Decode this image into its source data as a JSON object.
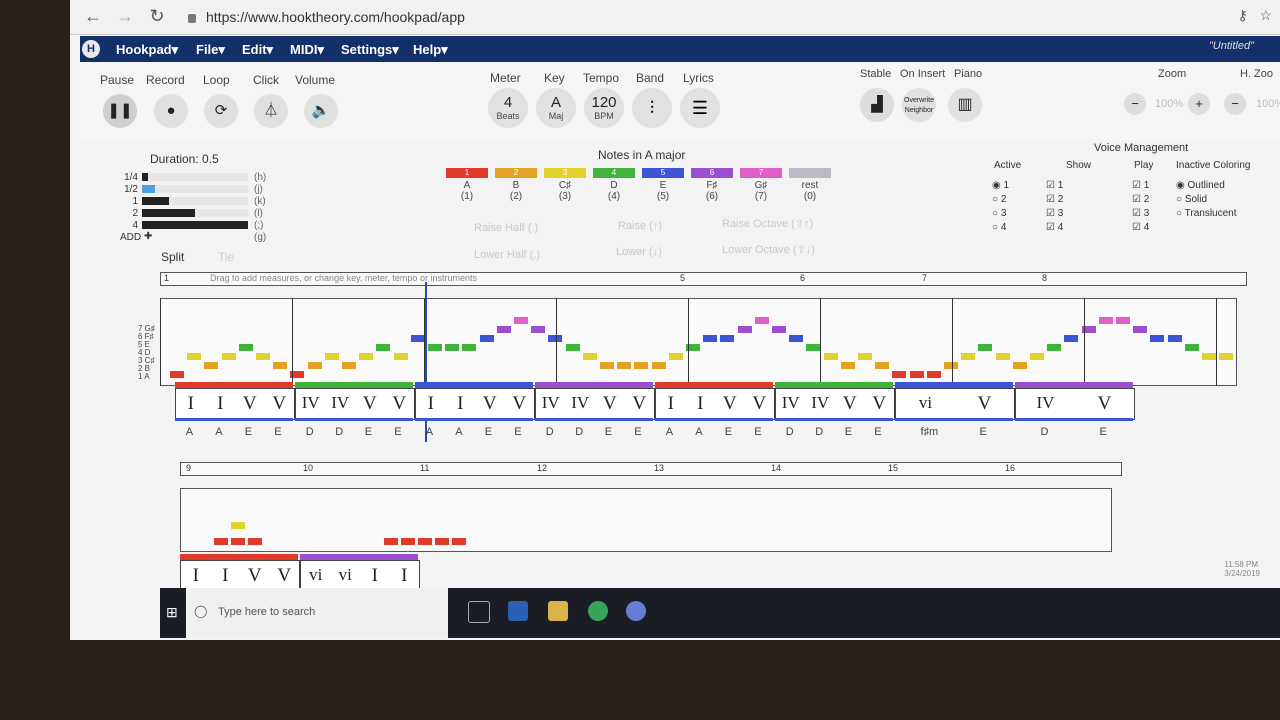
{
  "browser": {
    "url": "https://www.hooktheory.com/hookpad/app",
    "back_icon": "arrow-left-icon",
    "forward_icon": "arrow-right-icon",
    "reload_icon": "reload-icon"
  },
  "menubar": {
    "logo": "H",
    "items": [
      "Hookpad▾",
      "File▾",
      "Edit▾",
      "MIDI▾",
      "Settings▾",
      "Help▾"
    ],
    "doc_title": "\"Untitled\""
  },
  "toolbar": {
    "transport_labels": [
      "Pause",
      "Record",
      "Loop",
      "Click",
      "Volume"
    ],
    "song_labels": [
      "Meter",
      "Key",
      "Tempo",
      "Band",
      "Lyrics"
    ],
    "meter": {
      "big": "4",
      "small": "Beats"
    },
    "key": {
      "big": "A",
      "small": "Maj"
    },
    "tempo": {
      "big": "120",
      "small": "BPM"
    },
    "mode_labels": [
      "Stable",
      "On Insert",
      "Piano"
    ],
    "on_insert_value": "Overwrite Neighbor",
    "zoom_label": "Zoom",
    "zoom_value": "100%",
    "zoom_label2": "H. Zoo",
    "zoom_value2": "100%"
  },
  "duration": {
    "title": "Duration: 0.5",
    "rows": [
      {
        "label": "1/4",
        "key": "(h)",
        "fraction": 0.06
      },
      {
        "label": "1/2",
        "key": "(j)",
        "fraction": 0.12
      },
      {
        "label": "1",
        "key": "(k)",
        "fraction": 0.25
      },
      {
        "label": "2",
        "key": "(l)",
        "fraction": 0.5
      },
      {
        "label": "4",
        "key": "(;)",
        "fraction": 1.0
      },
      {
        "label": "ADD",
        "key": "(g)",
        "fraction": 0
      }
    ],
    "add_symbol": "✚",
    "split": "Split",
    "tie": "Tie"
  },
  "notes": {
    "title": "Notes in A major",
    "items": [
      {
        "num": "1",
        "name": "A",
        "key": "(1)",
        "color": "#e03a2a"
      },
      {
        "num": "2",
        "name": "B",
        "key": "(2)",
        "color": "#e3a224"
      },
      {
        "num": "3",
        "name": "C♯",
        "key": "(3)",
        "color": "#e2d22e"
      },
      {
        "num": "4",
        "name": "D",
        "key": "(4)",
        "color": "#3fb33a"
      },
      {
        "num": "5",
        "name": "E",
        "key": "(5)",
        "color": "#3c55d6"
      },
      {
        "num": "6",
        "name": "F♯",
        "key": "(6)",
        "color": "#9b4fd0"
      },
      {
        "num": "7",
        "name": "G♯",
        "key": "(7)",
        "color": "#e060c8"
      },
      {
        "num": "",
        "name": "rest",
        "key": "(0)",
        "color": "#b9bcc6"
      }
    ],
    "buttons": [
      "Raise Half (.)",
      "Raise (↑)",
      "Raise Octave (⇧↑)",
      "Lower Half (,)",
      "Lower (↓)",
      "Lower Octave (⇧↓)"
    ]
  },
  "voice": {
    "title": "Voice Management",
    "headers": [
      "Active",
      "Show",
      "Play",
      "Inactive Coloring"
    ],
    "numbers": [
      "1",
      "2",
      "3",
      "4"
    ],
    "coloring": [
      "Outlined",
      "Solid",
      "Translucent"
    ]
  },
  "score": {
    "hint": "Drag to add measures, or change key, meter, tempo or instruments",
    "measure_numbers": [
      "1",
      "5",
      "6",
      "7",
      "8"
    ],
    "pitch_labels": [
      "7 G♯",
      "6 F♯",
      "5 E",
      "4 D",
      "3 C♯",
      "2 B",
      "1 A"
    ],
    "chords": [
      [
        "I",
        "I",
        "V",
        "V"
      ],
      [
        "IV",
        "IV",
        "V",
        "V"
      ],
      [
        "I",
        "I",
        "V",
        "V"
      ],
      [
        "IV",
        "IV",
        "V",
        "V"
      ],
      [
        "I",
        "I",
        "V",
        "V"
      ],
      [
        "IV",
        "IV",
        "V",
        "V"
      ],
      [
        "vi",
        "V"
      ],
      [
        "IV",
        "V"
      ]
    ],
    "bass": [
      [
        "A",
        "A",
        "E",
        "E"
      ],
      [
        "D",
        "D",
        "E",
        "E"
      ],
      [
        "A",
        "A",
        "E",
        "E"
      ],
      [
        "D",
        "D",
        "E",
        "E"
      ],
      [
        "A",
        "A",
        "E",
        "E"
      ],
      [
        "D",
        "D",
        "E",
        "E"
      ],
      [
        "f♯m",
        "E"
      ],
      [
        "D",
        "E"
      ]
    ],
    "row2_measures": [
      "9",
      "10",
      "11",
      "12",
      "13",
      "14",
      "15",
      "16"
    ],
    "row2_chords": [
      [
        "I",
        "I",
        "V",
        "V"
      ],
      [
        "vi",
        "vi",
        "I",
        "I"
      ]
    ]
  },
  "taskbar": {
    "search_placeholder": "Type here to search",
    "time": "11:58 PM",
    "date": "3/24/2019"
  }
}
